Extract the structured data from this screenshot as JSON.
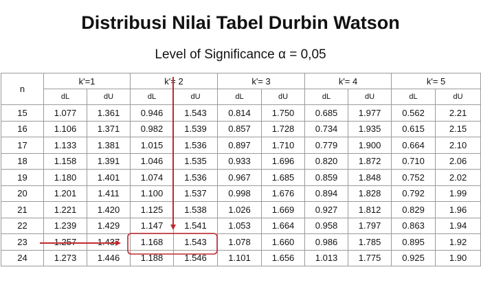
{
  "title": "Distribusi Nilai Tabel Durbin Watson",
  "subtitle": "Level of Significance α = 0,05",
  "table": {
    "n_label": "n",
    "groups": [
      "k'=1",
      "k'= 2",
      "k'= 3",
      "k'= 4",
      "k'= 5"
    ],
    "subheaders": [
      "dL",
      "dU",
      "dL",
      "dU",
      "dL",
      "dU",
      "dL",
      "dU",
      "dL",
      "dU"
    ],
    "rows": [
      {
        "n": "15",
        "v": [
          "1.077",
          "1.361",
          "0.946",
          "1.543",
          "0.814",
          "1.750",
          "0.685",
          "1.977",
          "0.562",
          "2.21"
        ]
      },
      {
        "n": "16",
        "v": [
          "1.106",
          "1.371",
          "0.982",
          "1.539",
          "0.857",
          "1.728",
          "0.734",
          "1.935",
          "0.615",
          "2.15"
        ]
      },
      {
        "n": "17",
        "v": [
          "1.133",
          "1.381",
          "1.015",
          "1.536",
          "0.897",
          "1.710",
          "0.779",
          "1.900",
          "0.664",
          "2.10"
        ]
      },
      {
        "n": "18",
        "v": [
          "1.158",
          "1.391",
          "1.046",
          "1.535",
          "0.933",
          "1.696",
          "0.820",
          "1.872",
          "0.710",
          "2.06"
        ]
      },
      {
        "n": "19",
        "v": [
          "1.180",
          "1.401",
          "1.074",
          "1.536",
          "0.967",
          "1.685",
          "0.859",
          "1.848",
          "0.752",
          "2.02"
        ]
      },
      {
        "n": "20",
        "v": [
          "1.201",
          "1.411",
          "1.100",
          "1.537",
          "0.998",
          "1.676",
          "0.894",
          "1.828",
          "0.792",
          "1.99"
        ]
      },
      {
        "n": "21",
        "v": [
          "1.221",
          "1.420",
          "1.125",
          "1.538",
          "1.026",
          "1.669",
          "0.927",
          "1.812",
          "0.829",
          "1.96"
        ]
      },
      {
        "n": "22",
        "v": [
          "1.239",
          "1.429",
          "1.147",
          "1.541",
          "1.053",
          "1.664",
          "0.958",
          "1.797",
          "0.863",
          "1.94"
        ]
      },
      {
        "n": "23",
        "v": [
          "1.257",
          "1.437",
          "1.168",
          "1.543",
          "1.078",
          "1.660",
          "0.986",
          "1.785",
          "0.895",
          "1.92"
        ]
      },
      {
        "n": "24",
        "v": [
          "1.273",
          "1.446",
          "1.188",
          "1.546",
          "1.101",
          "1.656",
          "1.013",
          "1.775",
          "0.925",
          "1.90"
        ]
      }
    ]
  },
  "colors": {
    "annotation": "#c0282d",
    "grid": "#9a9a9a"
  }
}
